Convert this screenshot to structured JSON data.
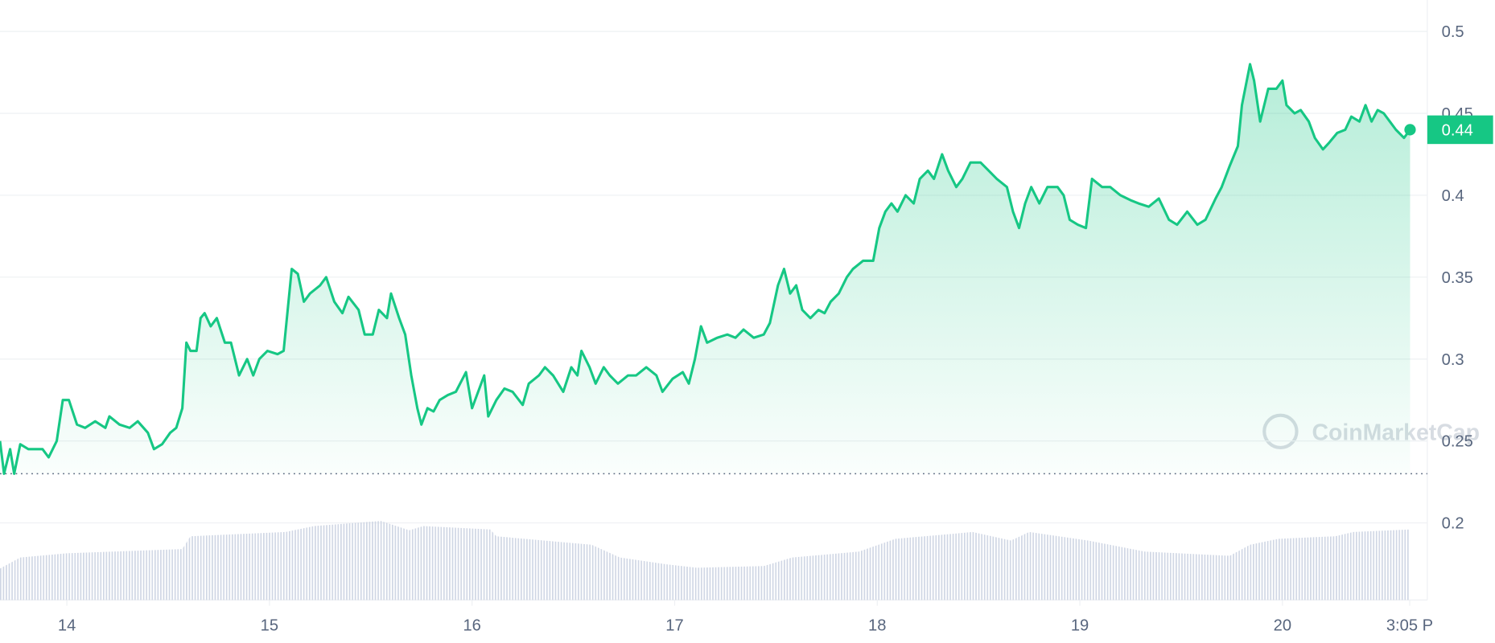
{
  "chart_data": {
    "type": "line",
    "x": [
      13.67,
      13.69,
      13.72,
      13.74,
      13.77,
      13.81,
      13.88,
      13.91,
      13.95,
      13.98,
      14.01,
      14.05,
      14.09,
      14.14,
      14.19,
      14.21,
      14.26,
      14.31,
      14.35,
      14.4,
      14.43,
      14.47,
      14.51,
      14.54,
      14.57,
      14.59,
      14.61,
      14.64,
      14.66,
      14.68,
      14.71,
      14.74,
      14.78,
      14.81,
      14.85,
      14.89,
      14.92,
      14.95,
      14.99,
      15.04,
      15.07,
      15.11,
      15.14,
      15.17,
      15.2,
      15.25,
      15.28,
      15.32,
      15.36,
      15.39,
      15.44,
      15.47,
      15.51,
      15.54,
      15.58,
      15.6,
      15.64,
      15.67,
      15.7,
      15.73,
      15.75,
      15.78,
      15.81,
      15.84,
      15.88,
      15.92,
      15.97,
      16.0,
      16.03,
      16.06,
      16.08,
      16.12,
      16.16,
      16.2,
      16.25,
      16.28,
      16.33,
      16.36,
      16.4,
      16.45,
      16.49,
      16.52,
      16.54,
      16.58,
      16.61,
      16.65,
      16.68,
      16.72,
      16.77,
      16.81,
      16.86,
      16.91,
      16.94,
      16.99,
      17.04,
      17.07,
      17.1,
      17.13,
      17.16,
      17.21,
      17.26,
      17.3,
      17.34,
      17.39,
      17.44,
      17.47,
      17.51,
      17.54,
      17.57,
      17.6,
      17.63,
      17.67,
      17.71,
      17.74,
      17.77,
      17.81,
      17.85,
      17.88,
      17.93,
      17.98,
      18.01,
      18.04,
      18.07,
      18.1,
      18.14,
      18.18,
      18.21,
      18.25,
      18.28,
      18.32,
      18.35,
      18.39,
      18.42,
      18.46,
      18.51,
      18.55,
      18.59,
      18.64,
      18.67,
      18.7,
      18.73,
      18.76,
      18.8,
      18.84,
      18.89,
      18.92,
      18.95,
      18.99,
      19.03,
      19.06,
      19.11,
      19.15,
      19.2,
      19.25,
      19.29,
      19.34,
      19.39,
      19.44,
      19.48,
      19.53,
      19.58,
      19.62,
      19.67,
      19.7,
      19.74,
      19.78,
      19.8,
      19.84,
      19.86,
      19.89,
      19.93,
      19.97,
      20.0,
      20.02,
      20.06,
      20.09,
      20.13,
      20.16,
      20.2,
      20.23,
      20.27,
      20.31,
      20.34,
      20.38,
      20.41,
      20.44,
      20.47,
      20.5,
      20.53,
      20.56,
      20.6,
      20.63
    ],
    "values": [
      0.25,
      0.23,
      0.245,
      0.23,
      0.248,
      0.245,
      0.245,
      0.24,
      0.25,
      0.275,
      0.275,
      0.26,
      0.258,
      0.262,
      0.258,
      0.265,
      0.26,
      0.258,
      0.262,
      0.255,
      0.245,
      0.248,
      0.255,
      0.258,
      0.27,
      0.31,
      0.305,
      0.305,
      0.325,
      0.328,
      0.32,
      0.325,
      0.31,
      0.31,
      0.29,
      0.3,
      0.29,
      0.3,
      0.305,
      0.303,
      0.305,
      0.355,
      0.352,
      0.335,
      0.34,
      0.345,
      0.35,
      0.335,
      0.328,
      0.338,
      0.33,
      0.315,
      0.315,
      0.33,
      0.325,
      0.34,
      0.325,
      0.315,
      0.29,
      0.27,
      0.26,
      0.27,
      0.268,
      0.275,
      0.278,
      0.28,
      0.292,
      0.27,
      0.28,
      0.29,
      0.265,
      0.275,
      0.282,
      0.28,
      0.272,
      0.285,
      0.29,
      0.295,
      0.29,
      0.28,
      0.295,
      0.29,
      0.305,
      0.295,
      0.285,
      0.295,
      0.29,
      0.285,
      0.29,
      0.29,
      0.295,
      0.29,
      0.28,
      0.288,
      0.292,
      0.285,
      0.3,
      0.32,
      0.31,
      0.313,
      0.315,
      0.313,
      0.318,
      0.313,
      0.315,
      0.322,
      0.345,
      0.355,
      0.34,
      0.345,
      0.33,
      0.325,
      0.33,
      0.328,
      0.335,
      0.34,
      0.35,
      0.355,
      0.36,
      0.36,
      0.38,
      0.39,
      0.395,
      0.39,
      0.4,
      0.395,
      0.41,
      0.415,
      0.41,
      0.425,
      0.415,
      0.405,
      0.41,
      0.42,
      0.42,
      0.415,
      0.41,
      0.405,
      0.39,
      0.38,
      0.395,
      0.405,
      0.395,
      0.405,
      0.405,
      0.4,
      0.385,
      0.382,
      0.38,
      0.41,
      0.405,
      0.405,
      0.4,
      0.397,
      0.395,
      0.393,
      0.398,
      0.385,
      0.382,
      0.39,
      0.382,
      0.385,
      0.398,
      0.405,
      0.418,
      0.43,
      0.455,
      0.48,
      0.47,
      0.445,
      0.465,
      0.465,
      0.47,
      0.455,
      0.45,
      0.452,
      0.445,
      0.435,
      0.428,
      0.432,
      0.438,
      0.44,
      0.448,
      0.445,
      0.455,
      0.445,
      0.452,
      0.45,
      0.445,
      0.44,
      0.435,
      0.44
    ],
    "color": "#16c784",
    "volume": {
      "x": [
        13.67,
        13.77,
        14.0,
        14.57,
        14.61,
        15.08,
        15.22,
        15.55,
        15.69,
        15.76,
        16.09,
        16.12,
        16.59,
        16.73,
        16.96,
        17.11,
        17.44,
        17.58,
        17.91,
        18.09,
        18.38,
        18.47,
        18.66,
        18.75,
        19.04,
        19.32,
        19.74,
        19.84,
        19.98,
        20.26,
        20.35,
        20.63
      ],
      "values": [
        37,
        50,
        55,
        60,
        75,
        80,
        87,
        93,
        82,
        87,
        83,
        75,
        65,
        50,
        42,
        38,
        40,
        50,
        57,
        72,
        78,
        80,
        70,
        80,
        70,
        57,
        52,
        65,
        72,
        75,
        80,
        83
      ]
    },
    "baseline": 0.23,
    "current_price": 0.44,
    "watermark": "CoinMarketCap",
    "xlim": [
      13.67,
      20.715
    ],
    "xticks": [
      14,
      15,
      16,
      17,
      18,
      19,
      20,
      {
        "value": 20.628,
        "label": "3:05 P"
      }
    ],
    "ylim": [
      0.15,
      0.52
    ],
    "yticks": [
      0.2,
      0.25,
      0.3,
      0.35,
      0.4,
      0.45,
      0.5
    ],
    "grid": true
  }
}
